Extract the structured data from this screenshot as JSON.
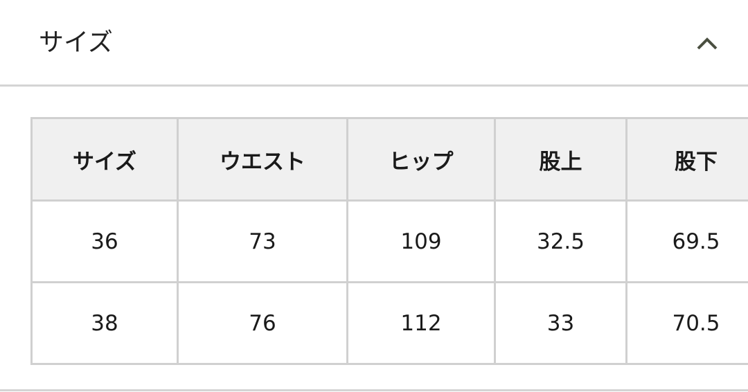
{
  "section": {
    "title": "サイズ",
    "toggle_icon": "chevron-up-icon",
    "expanded": true
  },
  "table": {
    "headers": [
      "サイズ",
      "ウエスト",
      "ヒップ",
      "股上",
      "股下"
    ],
    "rows": [
      [
        "36",
        "73",
        "109",
        "32.5",
        "69.5"
      ],
      [
        "38",
        "76",
        "112",
        "33",
        "70.5"
      ]
    ]
  },
  "colors": {
    "header_bg": "#f0f0f0",
    "border": "#d0d0d0",
    "chevron": "#4a4f40"
  }
}
